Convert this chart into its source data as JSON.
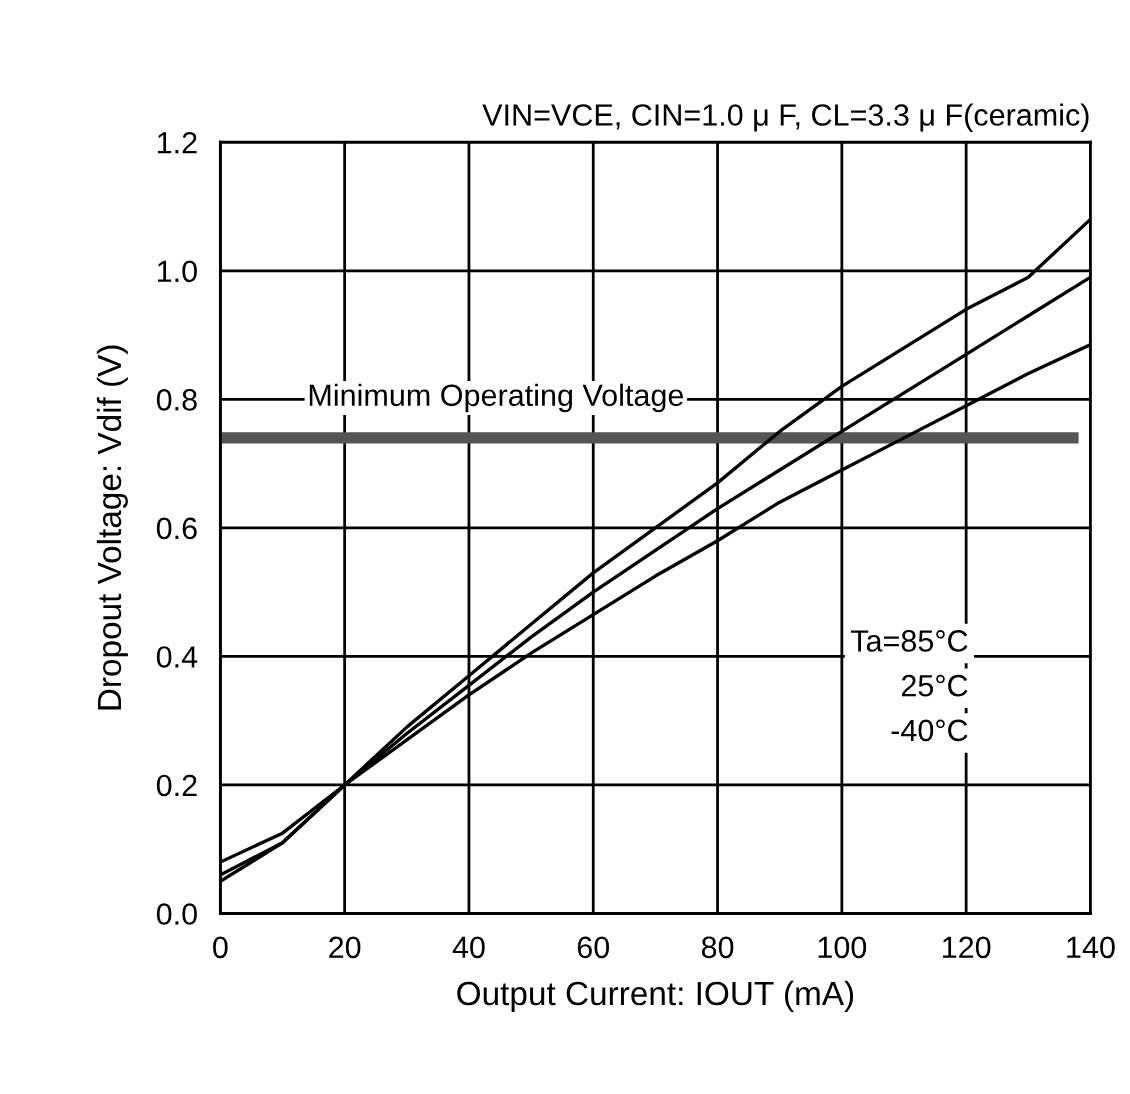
{
  "chart_data": {
    "type": "line",
    "subtitle": "VIN=VCE, CIN=1.0 μ F, CL=3.3 μ F(ceramic)",
    "xlabel": "Output Current: IOUT (mA)",
    "ylabel": "Dropout Voltage: Vdif (V)",
    "x": [
      0,
      10,
      20,
      30,
      40,
      50,
      60,
      70,
      80,
      90,
      100,
      110,
      120,
      130,
      140
    ],
    "series": [
      {
        "color": "#000000",
        "values": [
          0.05,
          0.11,
          0.2,
          0.29,
          0.37,
          0.45,
          0.53,
          0.6,
          0.67,
          0.75,
          0.82,
          0.88,
          0.94,
          0.99,
          1.08
        ]
      },
      {
        "color": "#000000",
        "values": [
          0.06,
          0.11,
          0.2,
          0.28,
          0.355,
          0.43,
          0.5,
          0.565,
          0.63,
          0.69,
          0.75,
          0.81,
          0.87,
          0.93,
          0.99
        ]
      },
      {
        "color": "#000000",
        "values": [
          0.08,
          0.125,
          0.2,
          0.27,
          0.34,
          0.405,
          0.465,
          0.525,
          0.58,
          0.64,
          0.69,
          0.74,
          0.79,
          0.84,
          0.885
        ]
      }
    ],
    "ref_lines": [
      {
        "axis": "y",
        "value": 0.74,
        "label": "Minimum Operating Voltage",
        "color": "#555555"
      }
    ],
    "annotations": [
      "Ta=85°C",
      "25°C",
      "-40°C"
    ],
    "xlim": [
      0,
      140
    ],
    "xticks": [
      0,
      20,
      40,
      60,
      80,
      100,
      120,
      140
    ],
    "ylim": [
      0,
      1.2
    ],
    "yticks": [
      {
        "value": 0,
        "label": "0.0"
      },
      0.2,
      0.4,
      0.6,
      0.8,
      {
        "value": 1.0,
        "label": "1.0"
      },
      1.2
    ],
    "grid": true,
    "legend": false,
    "marker": "none",
    "line_style": "solid"
  }
}
